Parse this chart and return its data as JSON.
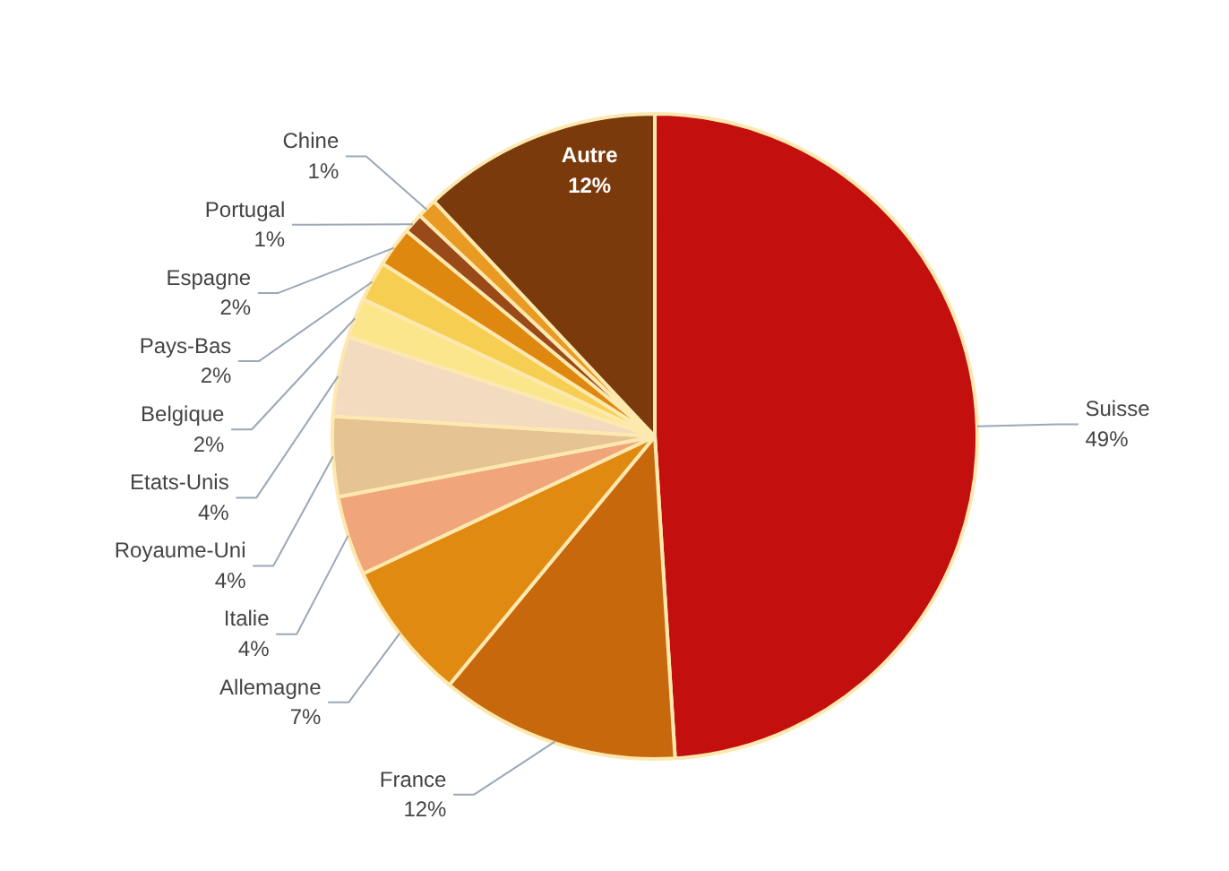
{
  "chart_data": {
    "type": "pie",
    "categories": [
      "Suisse",
      "France",
      "Allemagne",
      "Italie",
      "Royaume-Uni",
      "Etats-Unis",
      "Belgique",
      "Pays-Bas",
      "Espagne",
      "Portugal",
      "Chine",
      "Autre"
    ],
    "values": [
      49,
      12,
      7,
      4,
      4,
      4,
      2,
      2,
      2,
      1,
      1,
      12
    ],
    "value_labels": [
      "49%",
      "12%",
      "7%",
      "4%",
      "4%",
      "4%",
      "2%",
      "2%",
      "2%",
      "1%",
      "1%",
      "12%"
    ],
    "colors": [
      "#c40f0f",
      "#c8680c",
      "#e08a12",
      "#f0a57a",
      "#e6c393",
      "#f3dbc0",
      "#fbe68c",
      "#f6cf52",
      "#df8810",
      "#9a4a18",
      "#e89a22",
      "#7a3a0c"
    ]
  }
}
